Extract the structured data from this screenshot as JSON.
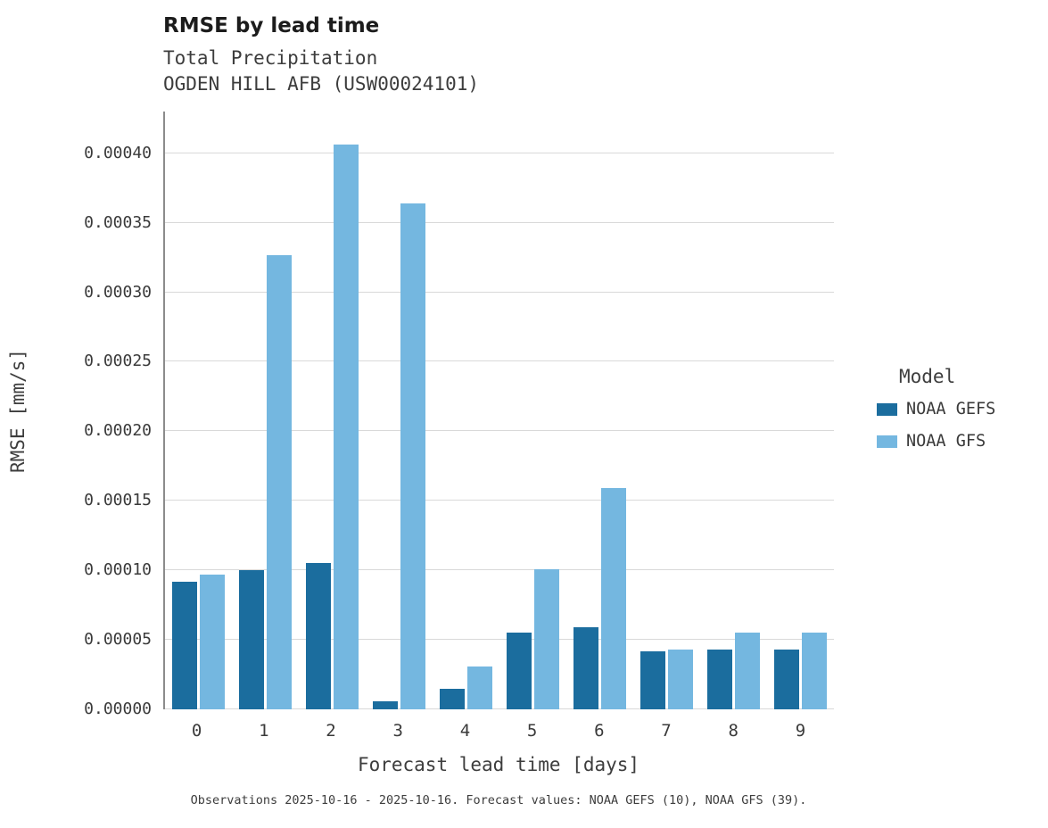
{
  "chart_data": {
    "type": "bar",
    "title": "RMSE by lead time",
    "subtitle": "Total Precipitation",
    "station": "OGDEN HILL AFB (USW00024101)",
    "xlabel": "Forecast lead time [days]",
    "ylabel": "RMSE [mm/s]",
    "legend_title": "Model",
    "legend_position": "right",
    "grid": "horizontal",
    "categories": [
      "0",
      "1",
      "2",
      "3",
      "4",
      "5",
      "6",
      "7",
      "8",
      "9"
    ],
    "series": [
      {
        "name": "NOAA GEFS",
        "color": "#1b6d9e",
        "values": [
          9.2e-05,
          0.0001,
          0.000105,
          6e-06,
          1.5e-05,
          5.5e-05,
          5.9e-05,
          4.2e-05,
          4.3e-05,
          4.3e-05
        ]
      },
      {
        "name": "NOAA GFS",
        "color": "#74b7e0",
        "values": [
          9.7e-05,
          0.000327,
          0.000406,
          0.000364,
          3.1e-05,
          0.000101,
          0.000159,
          4.3e-05,
          5.5e-05,
          5.5e-05
        ]
      }
    ],
    "ylim": [
      0,
      0.00043
    ],
    "yticks": [
      {
        "value": 0.0,
        "label": "0.00000"
      },
      {
        "value": 5e-05,
        "label": "0.00005"
      },
      {
        "value": 0.0001,
        "label": "0.00010"
      },
      {
        "value": 0.00015,
        "label": "0.00015"
      },
      {
        "value": 0.0002,
        "label": "0.00020"
      },
      {
        "value": 0.00025,
        "label": "0.00025"
      },
      {
        "value": 0.0003,
        "label": "0.00030"
      },
      {
        "value": 0.00035,
        "label": "0.00035"
      },
      {
        "value": 0.0004,
        "label": "0.00040"
      }
    ],
    "caption": "Observations 2025-10-16 - 2025-10-16. Forecast values: NOAA GEFS (10), NOAA GFS (39)."
  }
}
